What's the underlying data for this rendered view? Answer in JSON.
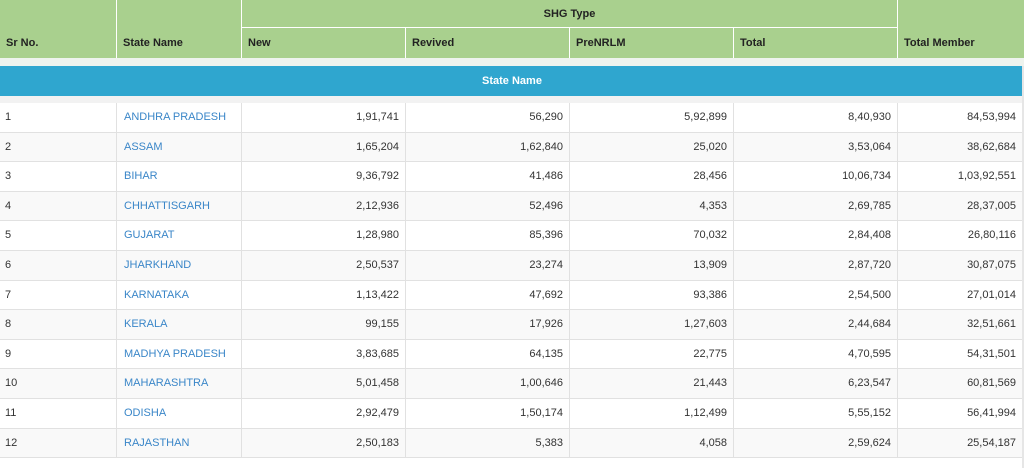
{
  "header": {
    "sr_no": "Sr No.",
    "state_name": "State Name",
    "shg_type": "SHG Type",
    "new": "New",
    "revived": "Revived",
    "prenrlm": "PreNRLM",
    "total": "Total",
    "total_member": "Total Member"
  },
  "band": {
    "label": "State Name"
  },
  "colors": {
    "header_bg": "#a9d08e",
    "band_bg": "#2fa6cf",
    "link": "#3a86c8"
  },
  "rows": [
    {
      "sr": "1",
      "state": "ANDHRA PRADESH",
      "new": "1,91,741",
      "revived": "56,290",
      "prenrlm": "5,92,899",
      "total": "8,40,930",
      "total_member": "84,53,994"
    },
    {
      "sr": "2",
      "state": "ASSAM",
      "new": "1,65,204",
      "revived": "1,62,840",
      "prenrlm": "25,020",
      "total": "3,53,064",
      "total_member": "38,62,684"
    },
    {
      "sr": "3",
      "state": "BIHAR",
      "new": "9,36,792",
      "revived": "41,486",
      "prenrlm": "28,456",
      "total": "10,06,734",
      "total_member": "1,03,92,551"
    },
    {
      "sr": "4",
      "state": "CHHATTISGARH",
      "new": "2,12,936",
      "revived": "52,496",
      "prenrlm": "4,353",
      "total": "2,69,785",
      "total_member": "28,37,005"
    },
    {
      "sr": "5",
      "state": "GUJARAT",
      "new": "1,28,980",
      "revived": "85,396",
      "prenrlm": "70,032",
      "total": "2,84,408",
      "total_member": "26,80,116"
    },
    {
      "sr": "6",
      "state": "JHARKHAND",
      "new": "2,50,537",
      "revived": "23,274",
      "prenrlm": "13,909",
      "total": "2,87,720",
      "total_member": "30,87,075"
    },
    {
      "sr": "7",
      "state": "KARNATAKA",
      "new": "1,13,422",
      "revived": "47,692",
      "prenrlm": "93,386",
      "total": "2,54,500",
      "total_member": "27,01,014"
    },
    {
      "sr": "8",
      "state": "KERALA",
      "new": "99,155",
      "revived": "17,926",
      "prenrlm": "1,27,603",
      "total": "2,44,684",
      "total_member": "32,51,661"
    },
    {
      "sr": "9",
      "state": "MADHYA PRADESH",
      "new": "3,83,685",
      "revived": "64,135",
      "prenrlm": "22,775",
      "total": "4,70,595",
      "total_member": "54,31,501"
    },
    {
      "sr": "10",
      "state": "MAHARASHTRA",
      "new": "5,01,458",
      "revived": "1,00,646",
      "prenrlm": "21,443",
      "total": "6,23,547",
      "total_member": "60,81,569"
    },
    {
      "sr": "11",
      "state": "ODISHA",
      "new": "2,92,479",
      "revived": "1,50,174",
      "prenrlm": "1,12,499",
      "total": "5,55,152",
      "total_member": "56,41,994"
    },
    {
      "sr": "12",
      "state": "RAJASTHAN",
      "new": "2,50,183",
      "revived": "5,383",
      "prenrlm": "4,058",
      "total": "2,59,624",
      "total_member": "25,54,187"
    }
  ]
}
